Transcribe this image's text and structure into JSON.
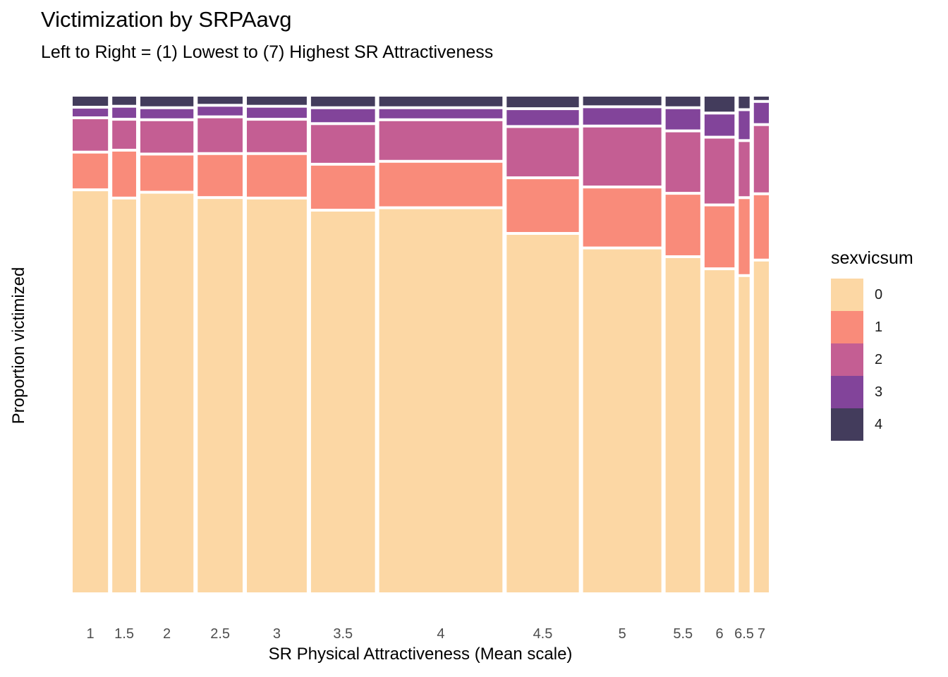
{
  "chart_data": {
    "type": "mosaic",
    "title": "Victimization by SRPAavg",
    "subtitle": "Left to Right = (1) Lowest to (7) Highest SR Attractiveness",
    "xlabel": "SR Physical Attractiveness (Mean scale)",
    "ylabel": "Proportion victimized",
    "legend": {
      "title": "sexvicsum",
      "position": "right",
      "levels": [
        "0",
        "1",
        "2",
        "3",
        "4"
      ],
      "colors": [
        "#FCD7A4",
        "#F98B7A",
        "#C45E93",
        "#82449A",
        "#433C5C"
      ]
    },
    "grid": false,
    "ylim": [
      0,
      1
    ],
    "categories": [
      "1",
      "1.5",
      "2",
      "2.5",
      "3",
      "3.5",
      "4",
      "4.5",
      "5",
      "5.5",
      "6",
      "6.5",
      "7"
    ],
    "column_widths": [
      0.052,
      0.035,
      0.078,
      0.066,
      0.088,
      0.094,
      0.181,
      0.106,
      0.115,
      0.051,
      0.044,
      0.016,
      0.022
    ],
    "series": [
      {
        "name": "0",
        "values": [
          0.828,
          0.811,
          0.823,
          0.812,
          0.811,
          0.786,
          0.791,
          0.738,
          0.708,
          0.69,
          0.665,
          0.651,
          0.683
        ]
      },
      {
        "name": "1",
        "values": [
          0.072,
          0.093,
          0.073,
          0.085,
          0.086,
          0.089,
          0.09,
          0.109,
          0.12,
          0.125,
          0.126,
          0.155,
          0.131
        ]
      },
      {
        "name": "2",
        "values": [
          0.065,
          0.058,
          0.065,
          0.07,
          0.065,
          0.078,
          0.08,
          0.1,
          0.12,
          0.123,
          0.134,
          0.112,
          0.137
        ]
      },
      {
        "name": "3",
        "values": [
          0.016,
          0.021,
          0.019,
          0.018,
          0.021,
          0.027,
          0.019,
          0.031,
          0.034,
          0.042,
          0.044,
          0.058,
          0.042
        ]
      },
      {
        "name": "4",
        "values": [
          0.019,
          0.017,
          0.02,
          0.015,
          0.017,
          0.02,
          0.02,
          0.022,
          0.018,
          0.02,
          0.031,
          0.024,
          0.007
        ]
      }
    ]
  }
}
